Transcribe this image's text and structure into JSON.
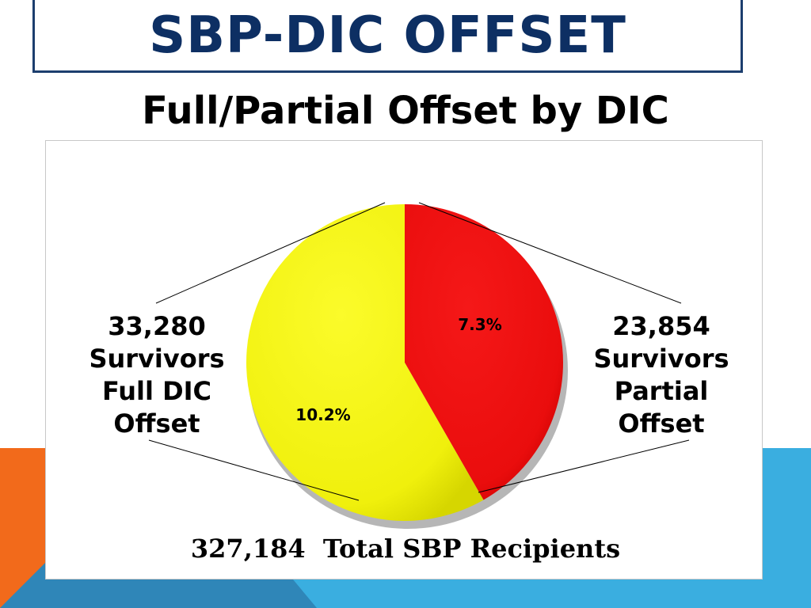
{
  "slide": {
    "title": "SBP-DIC OFFSET",
    "subtitle": "Full/Partial Offset by DIC"
  },
  "colors": {
    "title_text": "#0d2f63",
    "title_border": "#1c3e6e",
    "accent_orange": "#f26a1b",
    "accent_blue": "#3aaee0",
    "slice_full": "#f2f20e",
    "slice_partial": "#ee1010"
  },
  "chart_data": {
    "type": "pie",
    "slices": [
      {
        "label": "7.3%",
        "value": 7.3,
        "color": "#ee1010"
      },
      {
        "label": "10.2%",
        "value": 10.2,
        "color": "#f2f20e"
      }
    ],
    "callouts": {
      "left": [
        "33,280",
        "Survivors",
        "Full DIC",
        "Offset"
      ],
      "right": [
        "23,854",
        "Survivors",
        "Partial",
        "Offset"
      ]
    },
    "total": {
      "number": "327,184",
      "text": "Total SBP Recipients"
    }
  }
}
